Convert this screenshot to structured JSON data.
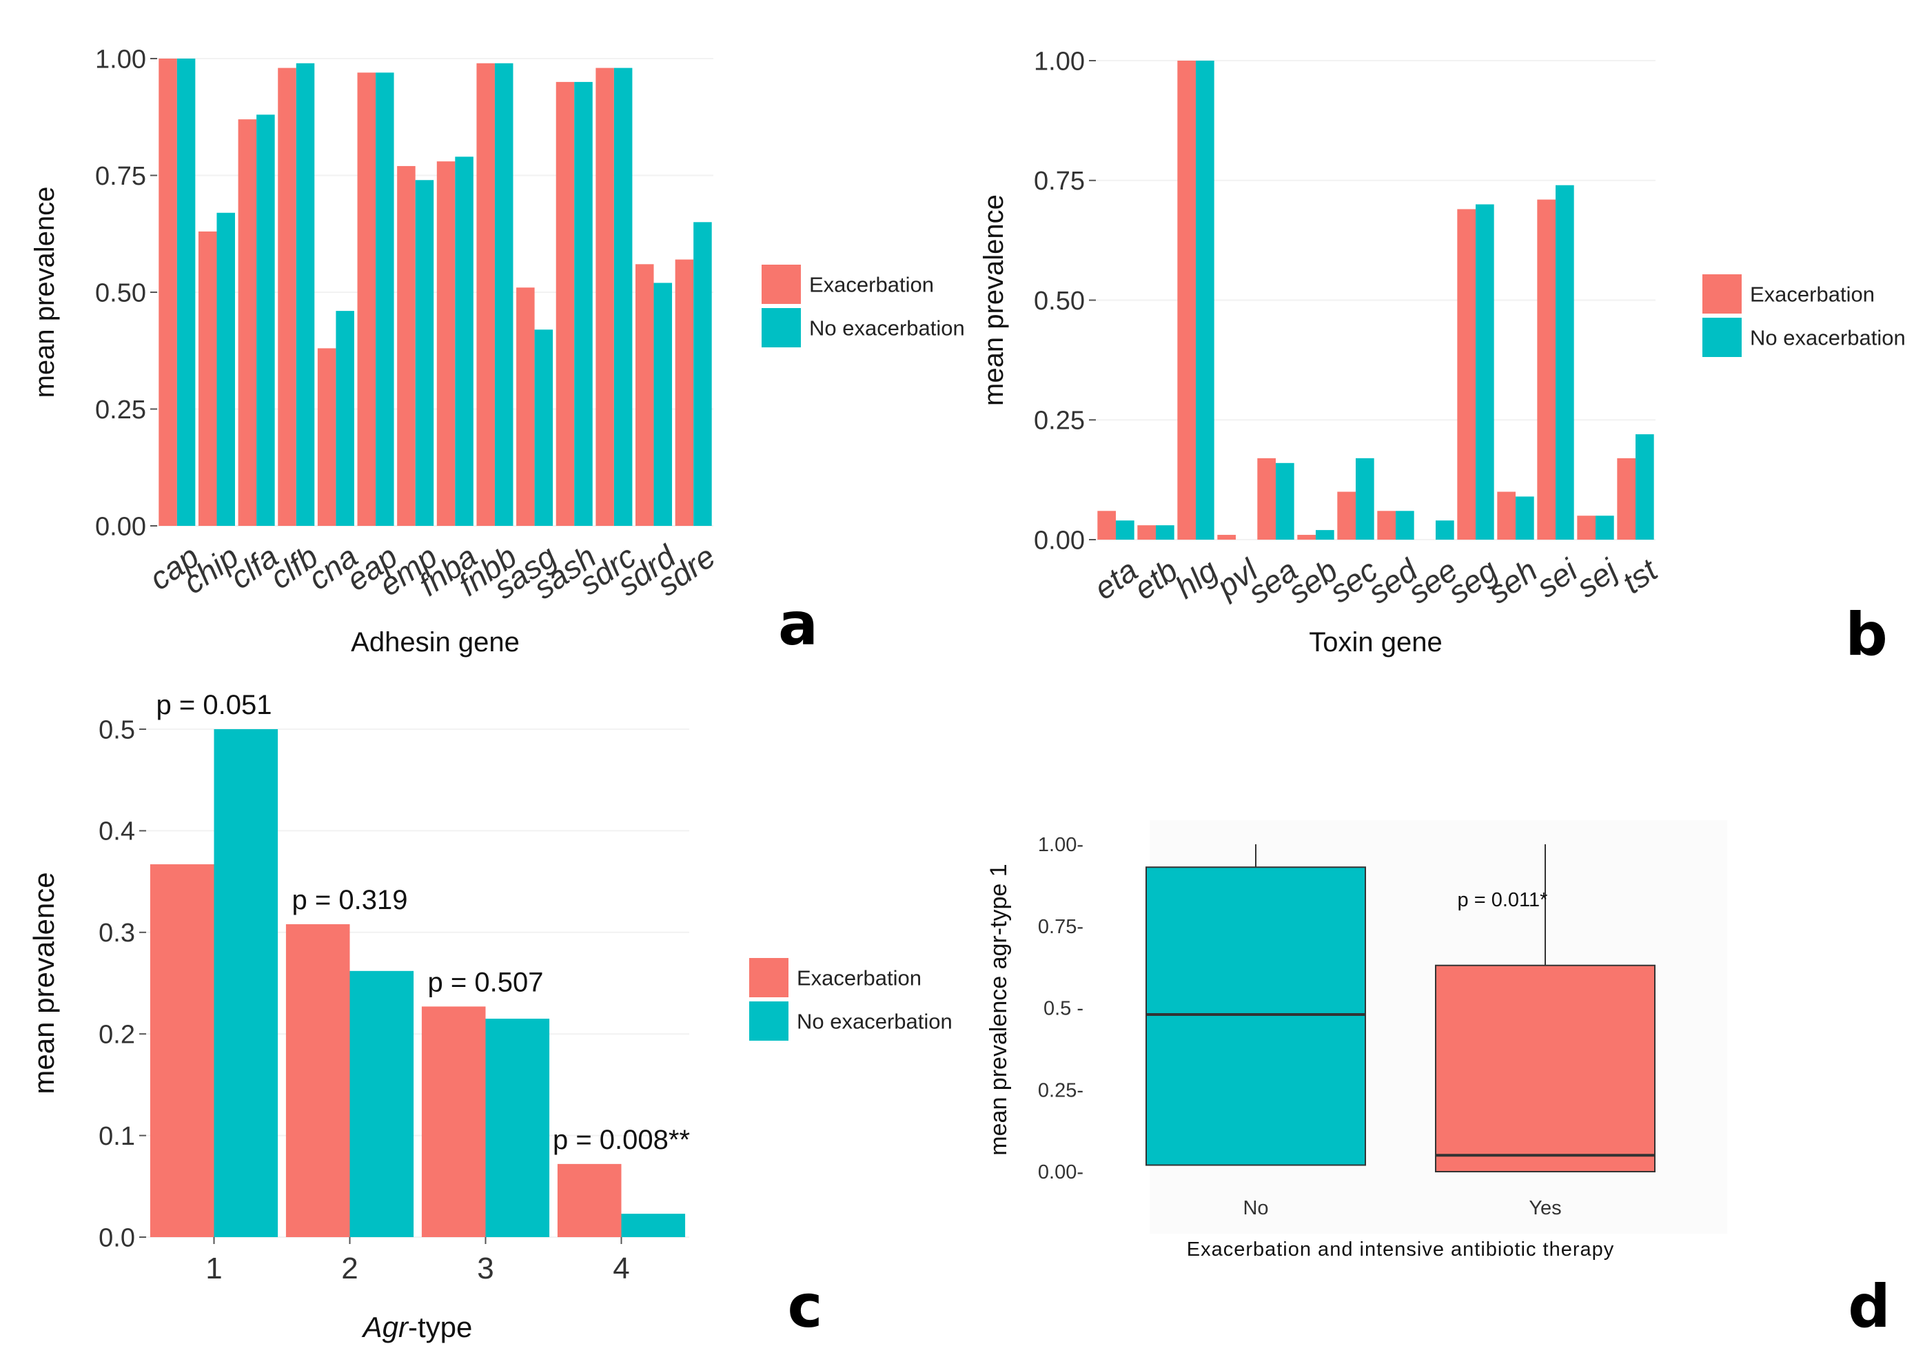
{
  "colors": {
    "exacerbation": "#F8766D",
    "no_exacerbation": "#00BFC4",
    "axis": "#555555",
    "grid": "#EBEBEB"
  },
  "chart_data": [
    {
      "type": "bar",
      "panel": "a",
      "xlabel": "Adhesin gene",
      "ylabel": "mean prevalence",
      "ylim": [
        0,
        1.0
      ],
      "yticks": [
        "0.00",
        "0.25",
        "0.50",
        "0.75",
        "1.00"
      ],
      "categories": [
        "cap",
        "chip",
        "clfa",
        "clfb",
        "cna",
        "eap",
        "emp",
        "fnba",
        "fnbb",
        "sasg",
        "sash",
        "sdrc",
        "sdrd",
        "sdre"
      ],
      "series": [
        {
          "name": "Exacerbation",
          "values": [
            1.0,
            0.63,
            0.87,
            0.98,
            0.38,
            0.97,
            0.77,
            0.78,
            0.99,
            0.51,
            0.95,
            0.98,
            0.56,
            0.57
          ]
        },
        {
          "name": "No exacerbation",
          "values": [
            1.0,
            0.67,
            0.88,
            0.99,
            0.46,
            0.97,
            0.74,
            0.79,
            0.99,
            0.42,
            0.95,
            0.98,
            0.52,
            0.65
          ]
        }
      ],
      "legend": [
        "Exacerbation",
        "No exacerbation"
      ]
    },
    {
      "type": "bar",
      "panel": "b",
      "xlabel": "Toxin gene",
      "ylabel": "mean prevalence",
      "ylim": [
        0,
        1.0
      ],
      "yticks": [
        "0.00",
        "0.25",
        "0.50",
        "0.75",
        "1.00"
      ],
      "categories": [
        "eta",
        "etb",
        "hlg",
        "pvl",
        "sea",
        "seb",
        "sec",
        "sed",
        "see",
        "seg",
        "seh",
        "sei",
        "sej",
        "tst"
      ],
      "series": [
        {
          "name": "Exacerbation",
          "values": [
            0.06,
            0.03,
            1.0,
            0.01,
            0.17,
            0.01,
            0.1,
            0.06,
            0.0,
            0.69,
            0.1,
            0.71,
            0.05,
            0.17
          ]
        },
        {
          "name": "No exacerbation",
          "values": [
            0.04,
            0.03,
            1.0,
            0.0,
            0.16,
            0.02,
            0.17,
            0.06,
            0.04,
            0.7,
            0.09,
            0.74,
            0.05,
            0.22
          ]
        }
      ],
      "legend": [
        "Exacerbation",
        "No exacerbation"
      ]
    },
    {
      "type": "bar",
      "panel": "c",
      "xlabel_italic": "Agr",
      "xlabel_rest": "-type",
      "ylabel": "mean prevalence",
      "ylim": [
        0,
        0.5
      ],
      "yticks": [
        "0.0",
        "0.1",
        "0.2",
        "0.3",
        "0.4",
        "0.5"
      ],
      "categories": [
        "1",
        "2",
        "3",
        "4"
      ],
      "series": [
        {
          "name": "Exacerbation",
          "values": [
            0.367,
            0.308,
            0.227,
            0.072
          ]
        },
        {
          "name": "No exacerbation",
          "values": [
            0.5,
            0.262,
            0.215,
            0.023
          ]
        }
      ],
      "annotations": [
        "p = 0.051",
        "p = 0.319",
        "p = 0.507",
        "p = 0.008**"
      ],
      "legend": [
        "Exacerbation",
        "No exacerbation"
      ]
    },
    {
      "type": "boxplot",
      "panel": "d",
      "xlabel": "Exacerbation and intensive antibiotic therapy",
      "ylabel": "mean prevalence agr-type 1",
      "ylim": [
        0,
        1.0
      ],
      "yticks": [
        "0.00-",
        "0.25-",
        "0.5  -",
        "0.75-",
        "1.00-"
      ],
      "categories": [
        "No",
        "Yes"
      ],
      "boxes": [
        {
          "name": "No",
          "min": 0.02,
          "q1": 0.02,
          "median": 0.48,
          "q3": 0.93,
          "max": 1.0
        },
        {
          "name": "Yes",
          "min": 0.0,
          "q1": 0.0,
          "median": 0.05,
          "q3": 0.63,
          "max": 1.0
        }
      ],
      "annotation": "p = 0.011*"
    }
  ],
  "panel_letters": [
    "a",
    "b",
    "c",
    "d"
  ]
}
